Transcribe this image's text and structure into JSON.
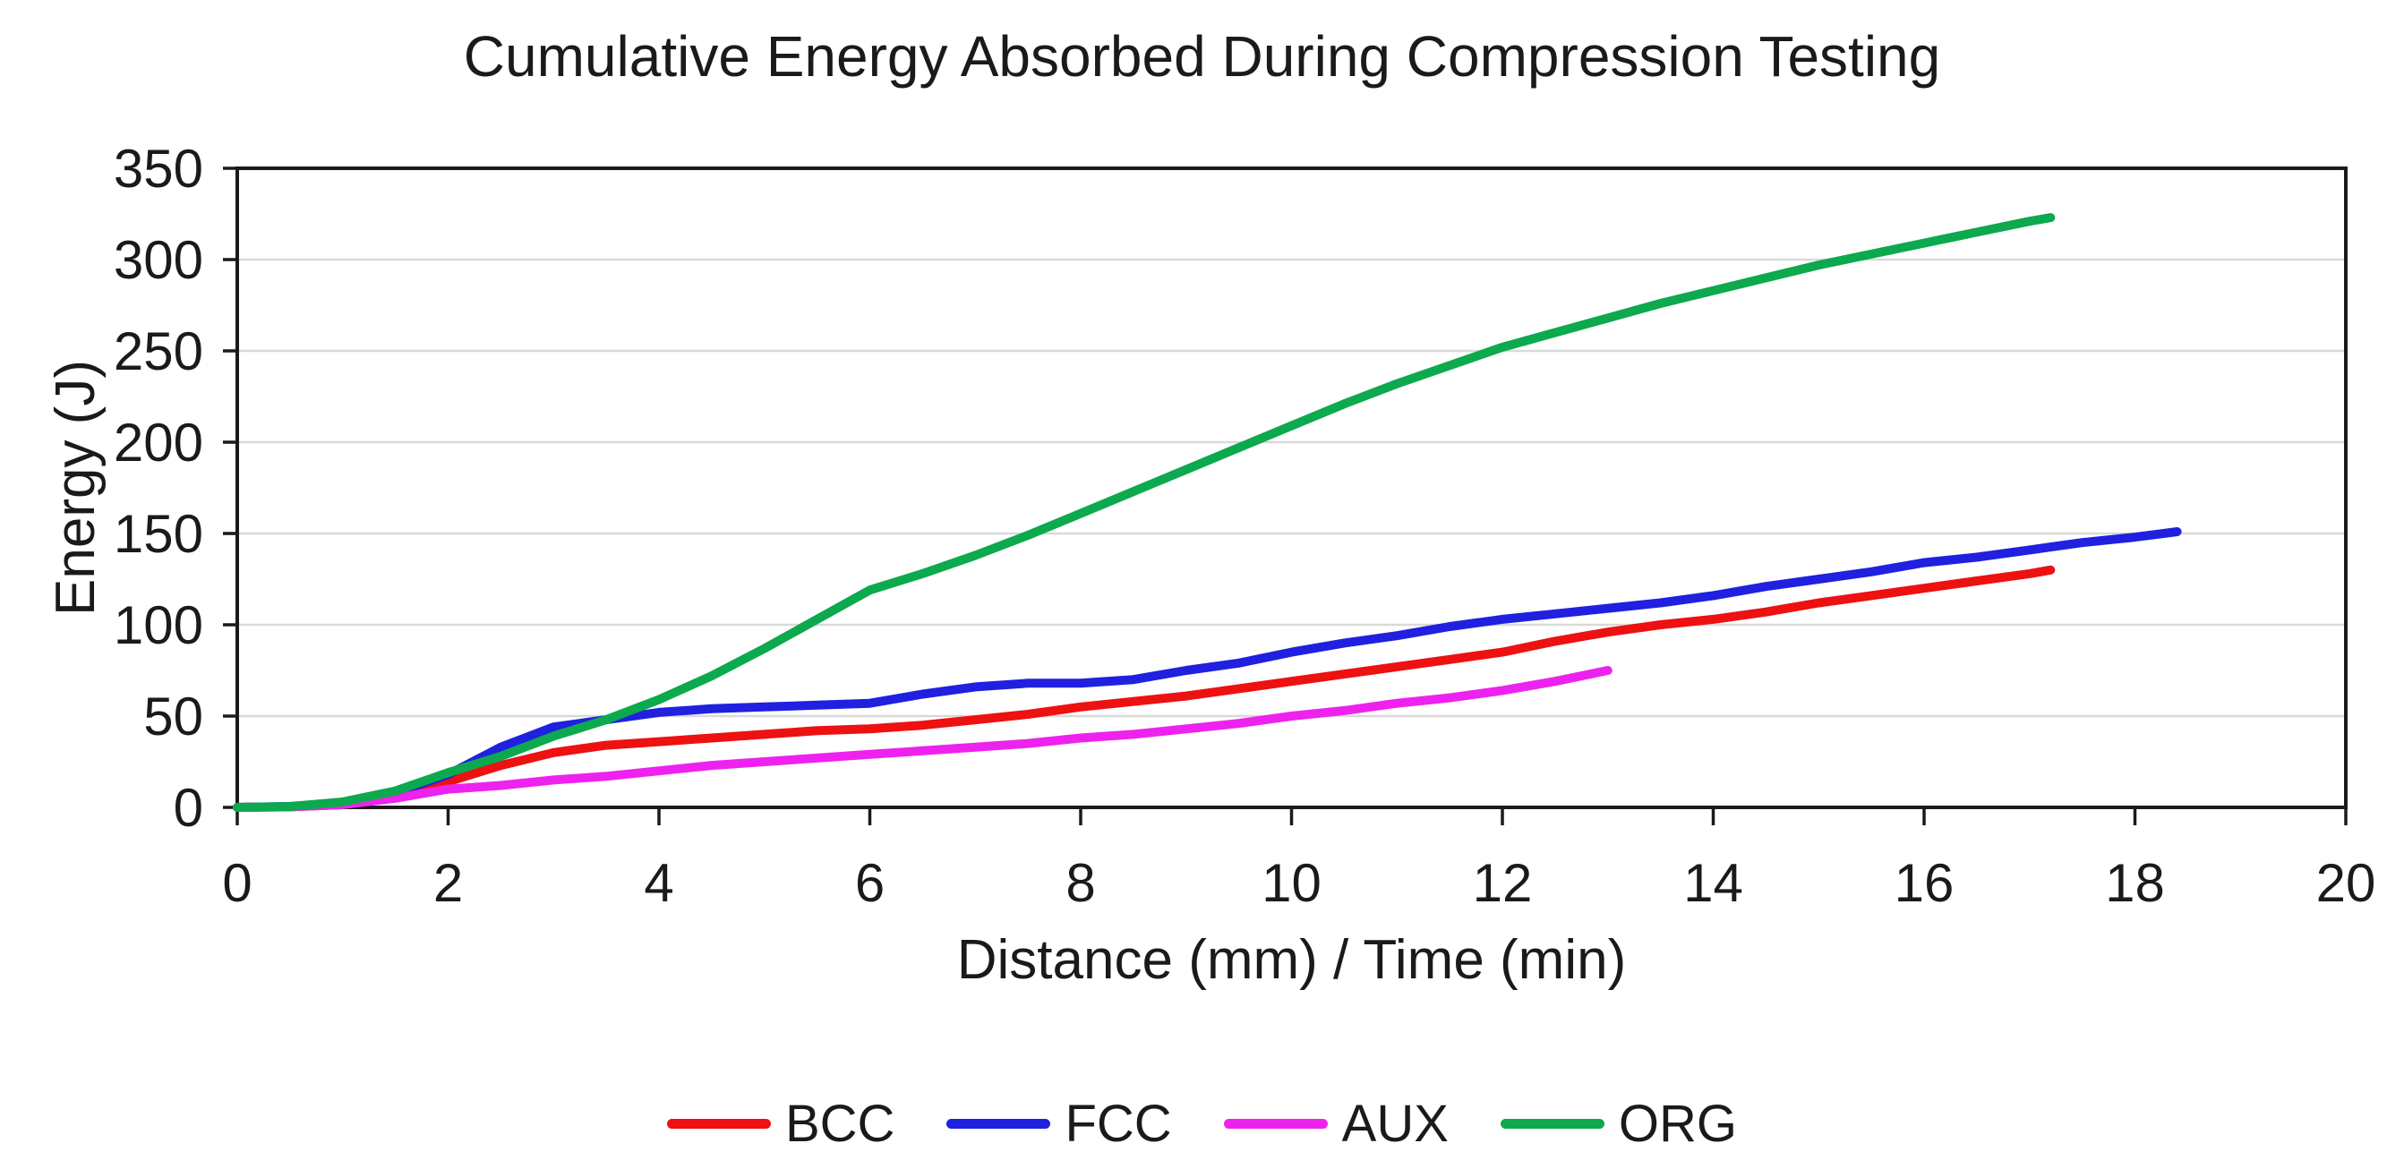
{
  "chart_data": {
    "type": "line",
    "title": "Cumulative Energy Absorbed During Compression Testing",
    "xlabel": "Distance (mm) / Time (min)",
    "ylabel": "Energy (J)",
    "xlim": [
      0,
      20
    ],
    "ylim": [
      0,
      350
    ],
    "x_ticks": [
      0,
      2,
      4,
      6,
      8,
      10,
      12,
      14,
      16,
      18,
      20
    ],
    "y_ticks": [
      0,
      50,
      100,
      150,
      200,
      250,
      300,
      350
    ],
    "grid": "horizontal-only",
    "gridline_color": "#d9d9d9",
    "axis_color": "#1a1a1a",
    "legend_position": "bottom-center",
    "series": [
      {
        "name": "BCC",
        "color": "#ed1111",
        "points": [
          [
            0,
            0
          ],
          [
            0.5,
            0.3
          ],
          [
            1,
            1.5
          ],
          [
            1.5,
            6
          ],
          [
            2,
            14
          ],
          [
            2.5,
            23
          ],
          [
            3,
            30
          ],
          [
            3.5,
            34
          ],
          [
            4,
            36
          ],
          [
            4.5,
            38
          ],
          [
            5,
            40
          ],
          [
            5.5,
            42
          ],
          [
            6,
            43
          ],
          [
            6.5,
            45
          ],
          [
            7,
            48
          ],
          [
            7.5,
            51
          ],
          [
            8,
            55
          ],
          [
            8.5,
            58
          ],
          [
            9,
            61
          ],
          [
            9.5,
            65
          ],
          [
            10,
            69
          ],
          [
            10.5,
            73
          ],
          [
            11,
            77
          ],
          [
            11.5,
            81
          ],
          [
            12,
            85
          ],
          [
            12.5,
            91
          ],
          [
            13,
            96
          ],
          [
            13.5,
            100
          ],
          [
            14,
            103
          ],
          [
            14.5,
            107
          ],
          [
            15,
            112
          ],
          [
            15.5,
            116
          ],
          [
            16,
            120
          ],
          [
            16.5,
            124
          ],
          [
            17,
            128
          ],
          [
            17.2,
            130
          ]
        ]
      },
      {
        "name": "FCC",
        "color": "#2020e0",
        "points": [
          [
            0,
            0
          ],
          [
            0.5,
            0.5
          ],
          [
            1,
            2
          ],
          [
            1.5,
            8
          ],
          [
            2,
            18
          ],
          [
            2.5,
            33
          ],
          [
            3,
            44
          ],
          [
            3.5,
            48
          ],
          [
            4,
            52
          ],
          [
            4.5,
            54
          ],
          [
            5,
            55
          ],
          [
            5.5,
            56
          ],
          [
            6,
            57
          ],
          [
            6.5,
            62
          ],
          [
            7,
            66
          ],
          [
            7.5,
            68
          ],
          [
            8,
            68
          ],
          [
            8.5,
            70
          ],
          [
            9,
            75
          ],
          [
            9.5,
            79
          ],
          [
            10,
            85
          ],
          [
            10.5,
            90
          ],
          [
            11,
            94
          ],
          [
            11.5,
            99
          ],
          [
            12,
            103
          ],
          [
            12.5,
            106
          ],
          [
            13,
            109
          ],
          [
            13.5,
            112
          ],
          [
            14,
            116
          ],
          [
            14.5,
            121
          ],
          [
            15,
            125
          ],
          [
            15.5,
            129
          ],
          [
            16,
            134
          ],
          [
            16.5,
            137
          ],
          [
            17,
            141
          ],
          [
            17.5,
            145
          ],
          [
            18,
            148
          ],
          [
            18.4,
            151
          ]
        ]
      },
      {
        "name": "AUX",
        "color": "#ee22ee",
        "points": [
          [
            0,
            0
          ],
          [
            0.5,
            0.3
          ],
          [
            1,
            1.5
          ],
          [
            1.5,
            5
          ],
          [
            2,
            10
          ],
          [
            2.5,
            12
          ],
          [
            3,
            15
          ],
          [
            3.5,
            17
          ],
          [
            4,
            20
          ],
          [
            4.5,
            23
          ],
          [
            5,
            25
          ],
          [
            5.5,
            27
          ],
          [
            6,
            29
          ],
          [
            6.5,
            31
          ],
          [
            7,
            33
          ],
          [
            7.5,
            35
          ],
          [
            8,
            38
          ],
          [
            8.5,
            40
          ],
          [
            9,
            43
          ],
          [
            9.5,
            46
          ],
          [
            10,
            50
          ],
          [
            10.5,
            53
          ],
          [
            11,
            57
          ],
          [
            11.5,
            60
          ],
          [
            12,
            64
          ],
          [
            12.5,
            69
          ],
          [
            13,
            75
          ]
        ]
      },
      {
        "name": "ORG",
        "color": "#0ca94e",
        "points": [
          [
            0,
            0
          ],
          [
            0.5,
            0.5
          ],
          [
            1,
            3
          ],
          [
            1.5,
            9
          ],
          [
            2,
            19
          ],
          [
            2.5,
            28
          ],
          [
            3,
            39
          ],
          [
            3.5,
            48
          ],
          [
            4,
            59
          ],
          [
            4.5,
            72
          ],
          [
            5,
            87
          ],
          [
            5.5,
            103
          ],
          [
            6,
            119
          ],
          [
            6.5,
            128
          ],
          [
            7,
            138
          ],
          [
            7.5,
            149
          ],
          [
            8,
            161
          ],
          [
            8.5,
            173
          ],
          [
            9,
            185
          ],
          [
            9.5,
            197
          ],
          [
            10,
            209
          ],
          [
            10.5,
            221
          ],
          [
            11,
            232
          ],
          [
            11.5,
            242
          ],
          [
            12,
            252
          ],
          [
            12.5,
            260
          ],
          [
            13,
            268
          ],
          [
            13.5,
            276
          ],
          [
            14,
            283
          ],
          [
            14.5,
            290
          ],
          [
            15,
            297
          ],
          [
            15.5,
            303
          ],
          [
            16,
            309
          ],
          [
            16.5,
            315
          ],
          [
            17,
            321
          ],
          [
            17.2,
            323
          ]
        ]
      }
    ]
  }
}
